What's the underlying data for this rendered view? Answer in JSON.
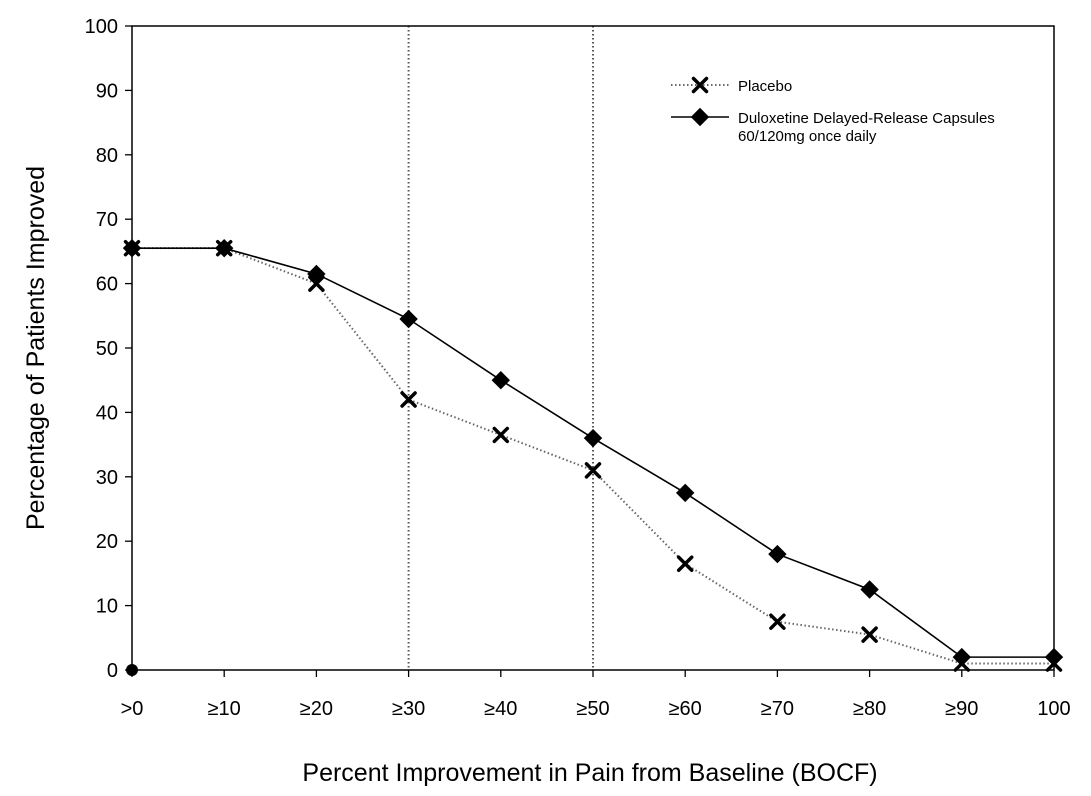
{
  "chart_data": {
    "type": "line",
    "xlabel": "Percent Improvement in Pain from Baseline (BOCF)",
    "ylabel": "Percentage of Patients Improved",
    "categories": [
      ">0",
      "≥10",
      "≥20",
      "≥30",
      "≥40",
      "≥50",
      "≥60",
      "≥70",
      "≥80",
      "≥90",
      "100"
    ],
    "ylim": [
      0,
      100
    ],
    "yticks": [
      "0",
      "10",
      "20",
      "30",
      "40",
      "50",
      "60",
      "70",
      "80",
      "90",
      "100"
    ],
    "reference_lines_at": [
      "≥30",
      "≥50"
    ],
    "grid": false,
    "legend_position": "top-right",
    "series": [
      {
        "name": "Placebo",
        "style": "dotted",
        "marker": "x",
        "color": "#000000",
        "values": [
          65.5,
          65.5,
          60,
          42,
          36.5,
          31,
          16.5,
          7.5,
          5.5,
          1,
          1
        ]
      },
      {
        "name": "Duloxetine Delayed-Release Capsules 60/120mg once daily",
        "name_lines": [
          "Duloxetine Delayed-Release Capsules",
          "60/120mg once daily"
        ],
        "style": "solid",
        "marker": "diamond",
        "color": "#000000",
        "values": [
          65.5,
          65.5,
          61.5,
          54.5,
          45,
          36,
          27.5,
          18,
          12.5,
          2,
          2
        ]
      }
    ],
    "extra_points": [
      {
        "category": ">0",
        "value": 0,
        "marker": "dot"
      }
    ]
  }
}
